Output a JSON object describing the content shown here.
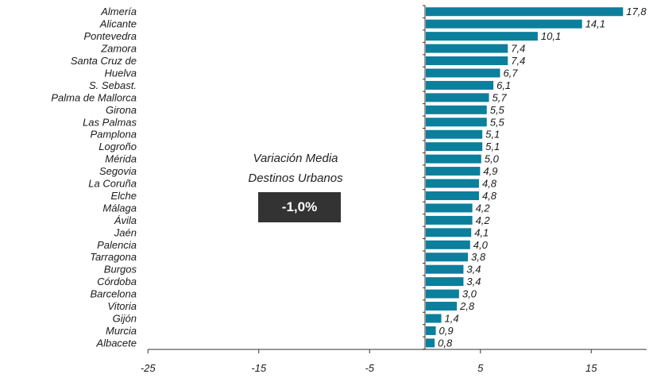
{
  "chart_data": {
    "type": "bar",
    "orientation": "horizontal",
    "categories": [
      "Almería",
      "Alicante",
      "Pontevedra",
      "Zamora",
      "Santa Cruz de",
      "Huelva",
      "S. Sebast.",
      "Palma de Mallorca",
      "Girona",
      "Las Palmas",
      "Pamplona",
      "Logroño",
      "Mérida",
      "Segovia",
      "La Coruña",
      "Elche",
      "Málaga",
      "Ávila",
      "Jaén",
      "Palencia",
      "Tarragona",
      "Burgos",
      "Córdoba",
      "Barcelona",
      "Vitoria",
      "Gijón",
      "Murcia",
      "Albacete"
    ],
    "values": [
      17.8,
      14.1,
      10.1,
      7.4,
      7.4,
      6.7,
      6.1,
      5.7,
      5.5,
      5.5,
      5.1,
      5.1,
      5.0,
      4.9,
      4.8,
      4.8,
      4.2,
      4.2,
      4.1,
      4.0,
      3.8,
      3.4,
      3.4,
      3.0,
      2.8,
      1.4,
      0.9,
      0.8
    ],
    "value_labels": [
      "17,8",
      "14,1",
      "10,1",
      "7,4",
      "7,4",
      "6,7",
      "6,1",
      "5,7",
      "5,5",
      "5,5",
      "5,1",
      "5,1",
      "5,0",
      "4,9",
      "4,8",
      "4,8",
      "4,2",
      "4,2",
      "4,1",
      "4,0",
      "3,8",
      "3,4",
      "3,4",
      "3,0",
      "2,8",
      "1,4",
      "0,9",
      "0,8"
    ],
    "xlim": [
      -25,
      20
    ],
    "x_ticks": [
      -25,
      -15,
      -5,
      5,
      15
    ],
    "x_tick_labels": [
      "-25",
      "-15",
      "-5",
      "5",
      "15"
    ],
    "bar_color": "#0b7f9c",
    "grid": false,
    "legend": "none"
  },
  "annotation": {
    "line1": "Variación Media",
    "line2": "Destinos Urbanos",
    "badge": "-1,0%"
  }
}
